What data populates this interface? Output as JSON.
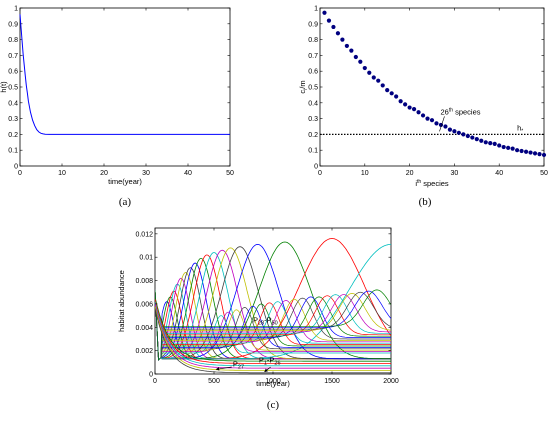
{
  "chart_data": [
    {
      "id": "a",
      "type": "line",
      "caption": "(a)",
      "xlabel": "time(year)",
      "ylabel": "h(t)",
      "xlim": [
        0,
        50
      ],
      "ylim": [
        0,
        1
      ],
      "xticks": [
        "0",
        "10",
        "20",
        "30",
        "40",
        "50"
      ],
      "yticks": [
        "0",
        "0.1",
        "0.2",
        "0.3",
        "0.4",
        "0.5",
        "0.6",
        "0.7",
        "0.8",
        "0.9",
        "1"
      ],
      "series": [
        {
          "color": "#0000ff",
          "x": [
            0,
            0.25,
            0.5,
            0.75,
            1,
            1.25,
            1.5,
            1.75,
            2,
            2.5,
            3,
            3.5,
            4,
            4.5,
            5,
            5.5,
            6,
            7,
            8,
            10,
            15,
            20,
            30,
            40,
            50
          ],
          "y": [
            0.96,
            0.87,
            0.79,
            0.71,
            0.64,
            0.57,
            0.51,
            0.46,
            0.41,
            0.34,
            0.29,
            0.255,
            0.23,
            0.215,
            0.207,
            0.203,
            0.201,
            0.2,
            0.2,
            0.2,
            0.2,
            0.2,
            0.2,
            0.2,
            0.2
          ]
        }
      ]
    },
    {
      "id": "b",
      "type": "scatter",
      "caption": "(b)",
      "xlabel": "i",
      "xlabel_sup": "th",
      "xlabel_rest": " species",
      "ylabel": "c",
      "ylabel_sub": "i",
      "ylabel_rest": "/m",
      "xlim": [
        0,
        50
      ],
      "ylim": [
        0,
        1
      ],
      "xticks": [
        "0",
        "10",
        "20",
        "30",
        "40",
        "50"
      ],
      "yticks": [
        "0",
        "0.1",
        "0.2",
        "0.3",
        "0.4",
        "0.5",
        "0.6",
        "0.7",
        "0.8",
        "0.9",
        "1"
      ],
      "point_color": "#000080",
      "points_x": [
        1,
        2,
        3,
        4,
        5,
        6,
        7,
        8,
        9,
        10,
        11,
        12,
        13,
        14,
        15,
        16,
        17,
        18,
        19,
        20,
        21,
        22,
        23,
        24,
        25,
        26,
        27,
        28,
        29,
        30,
        31,
        32,
        33,
        34,
        35,
        36,
        37,
        38,
        39,
        40,
        41,
        42,
        43,
        44,
        45,
        46,
        47,
        48,
        49,
        50
      ],
      "points_y": [
        0.97,
        0.92,
        0.88,
        0.84,
        0.8,
        0.76,
        0.73,
        0.69,
        0.66,
        0.62,
        0.59,
        0.56,
        0.54,
        0.51,
        0.48,
        0.46,
        0.44,
        0.41,
        0.39,
        0.37,
        0.36,
        0.34,
        0.32,
        0.3,
        0.29,
        0.27,
        0.26,
        0.25,
        0.23,
        0.22,
        0.21,
        0.2,
        0.19,
        0.18,
        0.17,
        0.16,
        0.15,
        0.145,
        0.14,
        0.13,
        0.12,
        0.115,
        0.11,
        0.1,
        0.095,
        0.09,
        0.085,
        0.08,
        0.075,
        0.07
      ],
      "threshold_y": 0.2,
      "annotation_species": {
        "label": "26",
        "sup": "th",
        "rest": " species",
        "x": 26,
        "y": 0.2
      },
      "annotation_h": {
        "label": "h",
        "sub": "*",
        "x": 44,
        "y": 0.2
      }
    },
    {
      "id": "c",
      "type": "line",
      "caption": "(c)",
      "xlabel": "time(year)",
      "ylabel": "habitat abundance",
      "xlim": [
        0,
        2000
      ],
      "ylim": [
        0,
        0.0125
      ],
      "xticks": [
        "0",
        "500",
        "1000",
        "1500",
        "2000"
      ],
      "xtick_values": [
        0,
        500,
        1000,
        1500,
        2000
      ],
      "yticks": [
        "0",
        "0.002",
        "0.004",
        "0.006",
        "0.008",
        "0.01",
        "0.012"
      ],
      "ytick_values": [
        0,
        0.002,
        0.004,
        0.006,
        0.008,
        0.01,
        0.012
      ],
      "palette": [
        "#0000ff",
        "#008000",
        "#ff0000",
        "#00bfbf",
        "#bf00bf",
        "#bfbf00",
        "#404040"
      ],
      "peaks": [
        {
          "t": 100,
          "h": 0.0062
        },
        {
          "t": 130,
          "h": 0.0066
        },
        {
          "t": 160,
          "h": 0.0071
        },
        {
          "t": 190,
          "h": 0.0077
        },
        {
          "t": 220,
          "h": 0.0082
        },
        {
          "t": 260,
          "h": 0.0087
        },
        {
          "t": 300,
          "h": 0.0091
        },
        {
          "t": 340,
          "h": 0.0095
        },
        {
          "t": 390,
          "h": 0.0099
        },
        {
          "t": 440,
          "h": 0.0102
        },
        {
          "t": 500,
          "h": 0.0104
        },
        {
          "t": 570,
          "h": 0.0106
        },
        {
          "t": 640,
          "h": 0.0108
        },
        {
          "t": 720,
          "h": 0.0109
        },
        {
          "t": 870,
          "h": 0.0111
        },
        {
          "t": 1100,
          "h": 0.0113
        },
        {
          "t": 1500,
          "h": 0.0116
        },
        {
          "t": 2000,
          "h": 0.0111
        }
      ],
      "mid_peaks": [
        {
          "t": 560,
          "h": 0.005
        },
        {
          "t": 620,
          "h": 0.0053
        },
        {
          "t": 690,
          "h": 0.0055
        },
        {
          "t": 760,
          "h": 0.0057
        },
        {
          "t": 830,
          "h": 0.0058
        },
        {
          "t": 900,
          "h": 0.006
        },
        {
          "t": 970,
          "h": 0.0061
        },
        {
          "t": 1040,
          "h": 0.0062
        },
        {
          "t": 1110,
          "h": 0.0063
        },
        {
          "t": 1180,
          "h": 0.0064
        },
        {
          "t": 1250,
          "h": 0.0065
        },
        {
          "t": 1320,
          "h": 0.0066
        },
        {
          "t": 1390,
          "h": 0.0066
        },
        {
          "t": 1460,
          "h": 0.0067
        },
        {
          "t": 1530,
          "h": 0.0068
        },
        {
          "t": 1600,
          "h": 0.0068
        },
        {
          "t": 1670,
          "h": 0.0069
        },
        {
          "t": 1740,
          "h": 0.007
        },
        {
          "t": 1810,
          "h": 0.0071
        },
        {
          "t": 1880,
          "h": 0.0072
        }
      ],
      "decay_levels": [
        0.0011,
        0.0009,
        0.0007,
        0.0005,
        0.0003,
        0.0001
      ],
      "label_upper": {
        "text": "P",
        "sub1": "28",
        "mid": "-P",
        "sub2": "50"
      },
      "label_27": {
        "text": "P",
        "sub1": "27"
      },
      "label_lower": {
        "text": "P",
        "sub1": "1",
        "mid": "-P",
        "sub2": "26"
      }
    }
  ]
}
